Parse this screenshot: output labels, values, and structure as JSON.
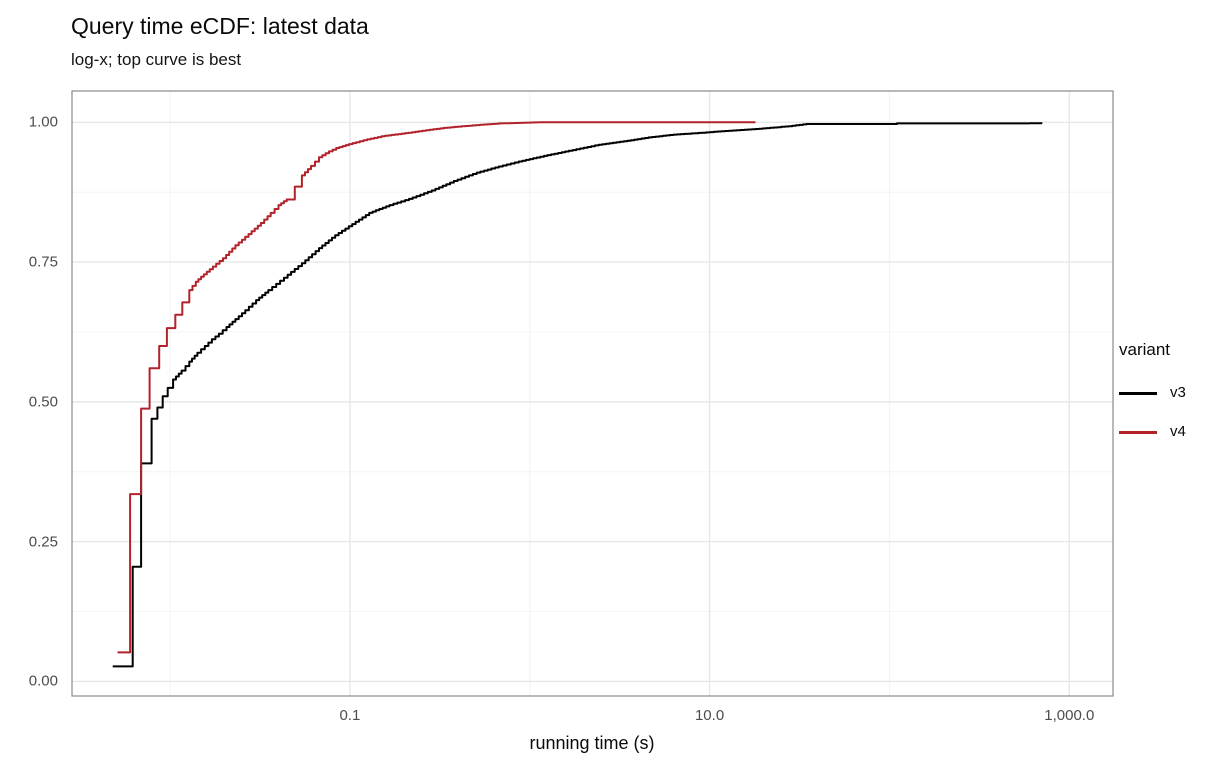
{
  "page": {
    "background": "#ffffff"
  },
  "colors": {
    "grid_major": "#e7e7e7",
    "grid_minor": "#f4f4f4",
    "panel_border": "#8a8a8a",
    "panel_background": "#ffffff",
    "tick_label": "#4d4d4d",
    "text": "#0a0a0a",
    "series_v3": "#000000",
    "series_v4": "#b2222b"
  },
  "chart_data": {
    "type": "line",
    "subtype": "ecdf-step",
    "title": "Query time eCDF: latest data",
    "subtitle": "log-x; top curve is best",
    "xlabel": "running time (s)",
    "ylabel": "",
    "x_scale": "log10",
    "grid": true,
    "xlim": [
      0.00285,
      1750
    ],
    "ylim": [
      -0.026,
      1.056
    ],
    "x_ticks": [
      {
        "label": "0.1",
        "value": 0.1
      },
      {
        "label": "10.0",
        "value": 10
      },
      {
        "label": "1,000.0",
        "value": 1000
      }
    ],
    "x_minor_gridlines": [
      0.01,
      1,
      100
    ],
    "y_ticks": [
      {
        "label": "0.00",
        "value": 0
      },
      {
        "label": "0.25",
        "value": 0.25
      },
      {
        "label": "0.50",
        "value": 0.5
      },
      {
        "label": "0.75",
        "value": 0.75
      },
      {
        "label": "1.00",
        "value": 1
      }
    ],
    "y_minor_gridlines": [
      0.125,
      0.375,
      0.625,
      0.875
    ],
    "legend": {
      "title": "variant",
      "position": "right",
      "entries": [
        {
          "label": "v3",
          "color": "#000000"
        },
        {
          "label": "v4",
          "color": "#b2222b"
        }
      ]
    },
    "series": [
      {
        "name": "v3",
        "color": "#000000",
        "points": [
          [
            0.0048,
            0.027
          ],
          [
            0.0062,
            0.205
          ],
          [
            0.0069,
            0.39
          ],
          [
            0.0079,
            0.47
          ],
          [
            0.0085,
            0.49
          ],
          [
            0.0091,
            0.51
          ],
          [
            0.0097,
            0.525
          ],
          [
            0.0104,
            0.54
          ],
          [
            0.0116,
            0.556
          ],
          [
            0.0128,
            0.572
          ],
          [
            0.0142,
            0.588
          ],
          [
            0.0156,
            0.6
          ],
          [
            0.0171,
            0.612
          ],
          [
            0.0187,
            0.622
          ],
          [
            0.0206,
            0.634
          ],
          [
            0.0231,
            0.648
          ],
          [
            0.0262,
            0.664
          ],
          [
            0.0301,
            0.682
          ],
          [
            0.0352,
            0.7
          ],
          [
            0.043,
            0.722
          ],
          [
            0.0541,
            0.748
          ],
          [
            0.0673,
            0.775
          ],
          [
            0.0829,
            0.798
          ],
          [
            0.103,
            0.818
          ],
          [
            0.128,
            0.838
          ],
          [
            0.166,
            0.852
          ],
          [
            0.213,
            0.863
          ],
          [
            0.285,
            0.878
          ],
          [
            0.378,
            0.895
          ],
          [
            0.507,
            0.91
          ],
          [
            0.673,
            0.921
          ],
          [
            0.869,
            0.93
          ],
          [
            1.2,
            0.94
          ],
          [
            1.65,
            0.949
          ],
          [
            2.42,
            0.96
          ],
          [
            3.33,
            0.966
          ],
          [
            4.58,
            0.973
          ],
          [
            6.3,
            0.978
          ],
          [
            8.7,
            0.981
          ],
          [
            12.8,
            0.985
          ],
          [
            18.0,
            0.988
          ],
          [
            27.5,
            0.993
          ],
          [
            34.6,
            0.997
          ],
          [
            110,
            0.998
          ],
          [
            600,
            0.9985
          ],
          [
            700,
            1.0
          ]
        ]
      },
      {
        "name": "v4",
        "color": "#b2222b",
        "points": [
          [
            0.0051,
            0.052
          ],
          [
            0.006,
            0.335
          ],
          [
            0.0069,
            0.488
          ],
          [
            0.0077,
            0.56
          ],
          [
            0.0087,
            0.6
          ],
          [
            0.0096,
            0.632
          ],
          [
            0.0107,
            0.656
          ],
          [
            0.0117,
            0.678
          ],
          [
            0.0128,
            0.7
          ],
          [
            0.0139,
            0.715
          ],
          [
            0.0154,
            0.728
          ],
          [
            0.0173,
            0.742
          ],
          [
            0.0197,
            0.757
          ],
          [
            0.0231,
            0.78
          ],
          [
            0.0273,
            0.8
          ],
          [
            0.032,
            0.82
          ],
          [
            0.0363,
            0.838
          ],
          [
            0.0401,
            0.852
          ],
          [
            0.0445,
            0.862
          ],
          [
            0.0494,
            0.885
          ],
          [
            0.0541,
            0.905
          ],
          [
            0.0608,
            0.922
          ],
          [
            0.0673,
            0.9375
          ],
          [
            0.0765,
            0.948
          ],
          [
            0.0839,
            0.954
          ],
          [
            0.0988,
            0.961
          ],
          [
            0.119,
            0.968
          ],
          [
            0.15,
            0.975
          ],
          [
            0.186,
            0.979
          ],
          [
            0.242,
            0.984
          ],
          [
            0.333,
            0.99
          ],
          [
            0.458,
            0.994
          ],
          [
            0.672,
            0.998
          ],
          [
            1.12,
            1.0
          ],
          [
            18.0,
            1.0
          ]
        ]
      }
    ]
  }
}
